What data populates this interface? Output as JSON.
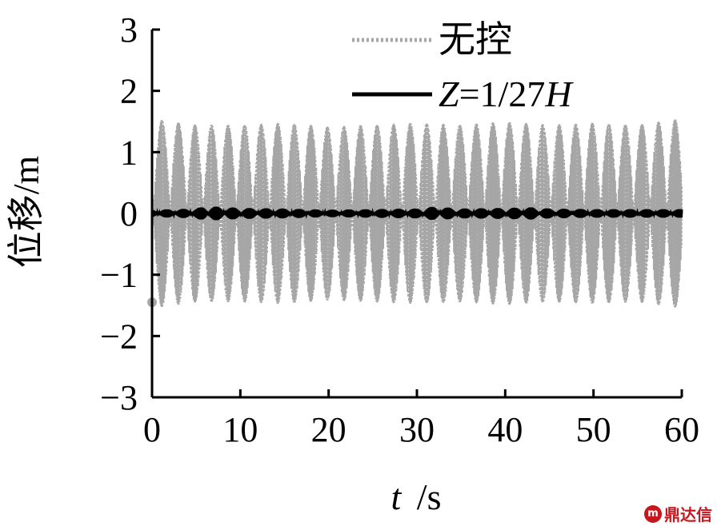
{
  "chart_data": {
    "type": "line",
    "xlabel_var": "t",
    "xlabel_unit": "/s",
    "ylabel": "位移/m",
    "xlim": [
      0,
      60
    ],
    "ylim": [
      -3,
      3
    ],
    "xticks": [
      "0",
      "10",
      "20",
      "30",
      "40",
      "50",
      "60"
    ],
    "yticks": [
      "3",
      "2",
      "1",
      "0",
      "−1",
      "−2",
      "−3"
    ],
    "legend_position": "top-right",
    "grid": false,
    "series": [
      {
        "name": "无控",
        "style": "dotted",
        "color": "#a6a6a6",
        "envelope_x": [
          0,
          5,
          10,
          15,
          20,
          25,
          30,
          35,
          40,
          45,
          50,
          55,
          60
        ],
        "envelope_amplitude": [
          1.55,
          1.45,
          1.45,
          1.48,
          1.42,
          1.45,
          1.48,
          1.45,
          1.5,
          1.45,
          1.48,
          1.45,
          1.55
        ]
      },
      {
        "name_prefix": "Z",
        "name_suffix": "=1/27",
        "name_end": "H",
        "style": "solid",
        "color": "#000000",
        "envelope_x": [
          0,
          5,
          6,
          10,
          15,
          20,
          25,
          30,
          32,
          35,
          40,
          43,
          45,
          50,
          55,
          60
        ],
        "envelope_amplitude": [
          0.06,
          0.08,
          0.12,
          0.09,
          0.08,
          0.06,
          0.07,
          0.08,
          0.11,
          0.08,
          0.09,
          0.1,
          0.08,
          0.07,
          0.07,
          0.07
        ]
      }
    ]
  },
  "watermark": {
    "seal": "m",
    "text": "鼎达信"
  }
}
